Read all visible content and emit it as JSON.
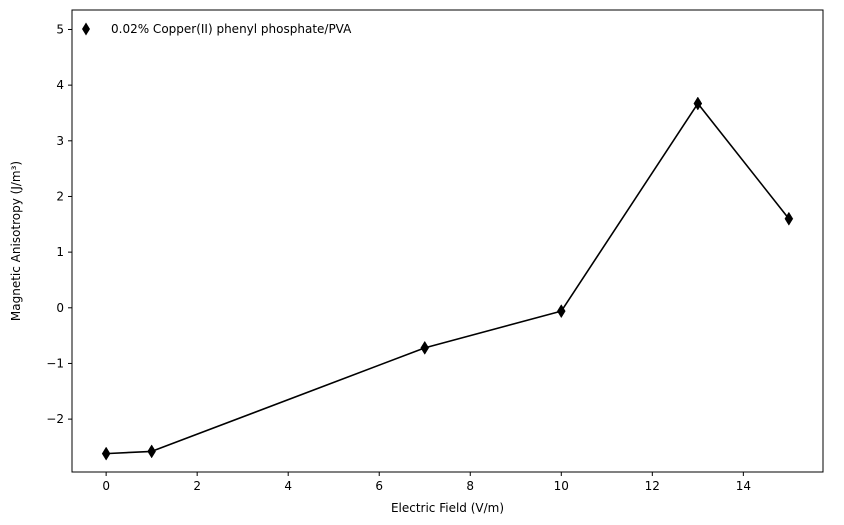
{
  "chart_data": {
    "type": "line",
    "xlabel": "Electric Field (V/m)",
    "ylabel": "Magnetic Anisotropy (J/m³)",
    "xlim": [
      -0.75,
      15.75
    ],
    "ylim": [
      -2.95,
      5.35
    ],
    "xticks": [
      0,
      2,
      4,
      6,
      8,
      10,
      12,
      14
    ],
    "yticks": [
      -2,
      -1,
      0,
      1,
      2,
      3,
      4,
      5
    ],
    "xtick_labels": [
      "0",
      "2",
      "4",
      "6",
      "8",
      "10",
      "12",
      "14"
    ],
    "ytick_labels": [
      "−2",
      "−1",
      "0",
      "1",
      "2",
      "3",
      "4",
      "5"
    ],
    "grid": false,
    "legend_position": "top-left",
    "series": [
      {
        "name": "0.02% Copper(II) phenyl phosphate/PVA",
        "color": "#000000",
        "marker": "thin-diamond",
        "x": [
          0,
          1,
          7,
          10,
          13,
          15
        ],
        "y": [
          -2.62,
          -2.58,
          -0.72,
          -0.06,
          3.67,
          1.6
        ]
      }
    ]
  }
}
